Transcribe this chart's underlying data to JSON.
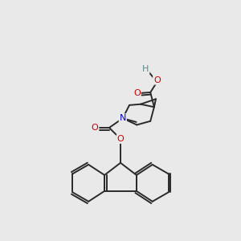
{
  "bg_color": "#e9e9e9",
  "bond_color": "#2a2a2a",
  "atom_colors": {
    "O": "#cc0000",
    "N": "#0000cc",
    "H": "#5a8a8a",
    "C": "#2a2a2a"
  },
  "figsize": [
    3.0,
    3.0
  ],
  "dpi": 100
}
